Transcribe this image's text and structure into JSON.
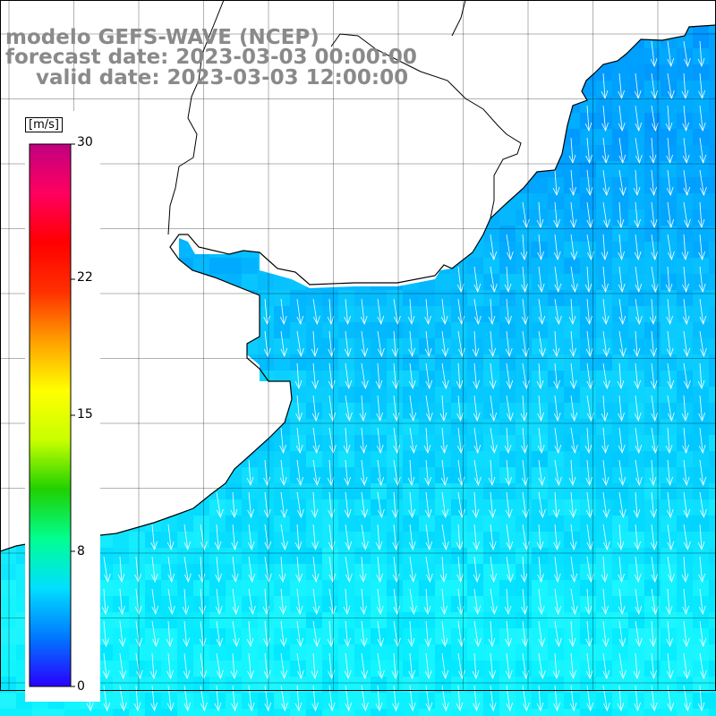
{
  "title": {
    "model": "modelo GEFS-WAVE (NCEP)",
    "forecast": "forecast date: 2023-03-03 00:00:00",
    "valid": "valid date: 2023-03-03 12:00:00"
  },
  "colorbar": {
    "unit": "[m/s]",
    "ticks": [
      "30",
      "22",
      "15",
      "8",
      "0"
    ],
    "tick_values": [
      30,
      22,
      15,
      8,
      0
    ],
    "range": [
      0,
      30
    ],
    "colors": [
      "#2a00ff",
      "#0078ff",
      "#00e0ff",
      "#00ff90",
      "#20d000",
      "#c8ff00",
      "#ffff00",
      "#ffa000",
      "#ff3000",
      "#ff0000",
      "#ff0060",
      "#c00080"
    ]
  },
  "map": {
    "land_color": "#ffffff",
    "grid_color": "#000000",
    "grid": true,
    "field_color_dominant": "#00e8ff",
    "arrow_color": "#ffffff",
    "wind_direction": "southward"
  }
}
